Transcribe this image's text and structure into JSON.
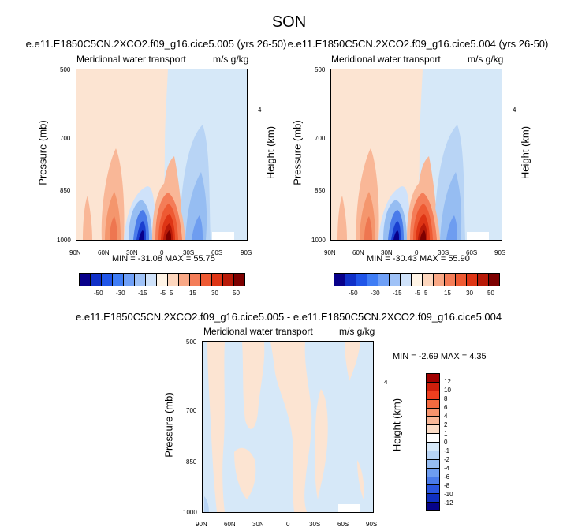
{
  "figure_title": "SON",
  "chart_data": [
    {
      "type": "heatmap",
      "title": "e.e11.E1850C5CN.2XCO2.f09_g16.cice5.005 (yrs 26-50)",
      "left_string": "Meridional water transport",
      "right_string": "m/s g/kg",
      "xlabel": "",
      "ylabel": "Pressure (mb)",
      "ylabel_right": "Height (km)",
      "x_ticks": [
        "90N",
        "60N",
        "30N",
        "0",
        "30S",
        "60S",
        "90S"
      ],
      "y_ticks": [
        "500",
        "700",
        "850",
        "1000"
      ],
      "y_right_ticks": [
        "4"
      ],
      "ylim": [
        1000,
        500
      ],
      "stats": "MIN = -31.08   MAX =  55.75",
      "min": -31.08,
      "max": 55.75,
      "colorbar_labels": [
        "-50",
        "-30",
        "-15",
        "-5",
        "5",
        "15",
        "30",
        "50"
      ]
    },
    {
      "type": "heatmap",
      "title": "e.e11.E1850C5CN.2XCO2.f09_g16.cice5.004 (yrs 26-50)",
      "left_string": "Meridional water transport",
      "right_string": "m/s g/kg",
      "xlabel": "",
      "ylabel": "Pressure (mb)",
      "ylabel_right": "Height (km)",
      "x_ticks": [
        "90N",
        "60N",
        "30N",
        "0",
        "30S",
        "60S",
        "90S"
      ],
      "y_ticks": [
        "500",
        "700",
        "850",
        "1000"
      ],
      "y_right_ticks": [
        "4"
      ],
      "ylim": [
        1000,
        500
      ],
      "stats": "MIN = -30.43   MAX =  55.90",
      "min": -30.43,
      "max": 55.9,
      "colorbar_labels": [
        "-50",
        "-30",
        "-15",
        "-5",
        "5",
        "15",
        "30",
        "50"
      ]
    },
    {
      "type": "heatmap",
      "title": "e.e11.E1850C5CN.2XCO2.f09_g16.cice5.005 - e.e11.E1850C5CN.2XCO2.f09_g16.cice5.004",
      "left_string": "Meridional water transport",
      "right_string": "m/s g/kg",
      "xlabel": "",
      "ylabel": "Pressure (mb)",
      "ylabel_right": "Height (km)",
      "x_ticks": [
        "90N",
        "60N",
        "30N",
        "0",
        "30S",
        "60S",
        "90S"
      ],
      "y_ticks": [
        "500",
        "700",
        "850",
        "1000"
      ],
      "y_right_ticks": [
        "4"
      ],
      "ylim": [
        1000,
        500
      ],
      "stats": "MIN =  -2.69   MAX =   4.35",
      "min": -2.69,
      "max": 4.35,
      "colorbar_labels": [
        "12",
        "10",
        "8",
        "6",
        "4",
        "2",
        "1",
        "0",
        "-1",
        "-2",
        "-4",
        "-6",
        "-8",
        "-10",
        "-12"
      ]
    }
  ],
  "colors": {
    "colorbar": [
      "#08008a",
      "#1030c8",
      "#2055e8",
      "#3f7df5",
      "#6fa0f7",
      "#9fc2f7",
      "#cfe2fa",
      "#fff4e6",
      "#fdd6bd",
      "#f9a886",
      "#f47d58",
      "#ee5a33",
      "#de3515",
      "#b81a08",
      "#7d0000"
    ],
    "diff_colorbar": [
      "#a10000",
      "#cf1f0c",
      "#ef3f1f",
      "#f46a40",
      "#f7936c",
      "#f9b797",
      "#fcdcc6",
      "#d6e8f8",
      "#b8d4f5",
      "#96bdf2",
      "#6e9df0",
      "#4a7bea",
      "#2a56e0",
      "#1030c0",
      "#06038a"
    ]
  }
}
